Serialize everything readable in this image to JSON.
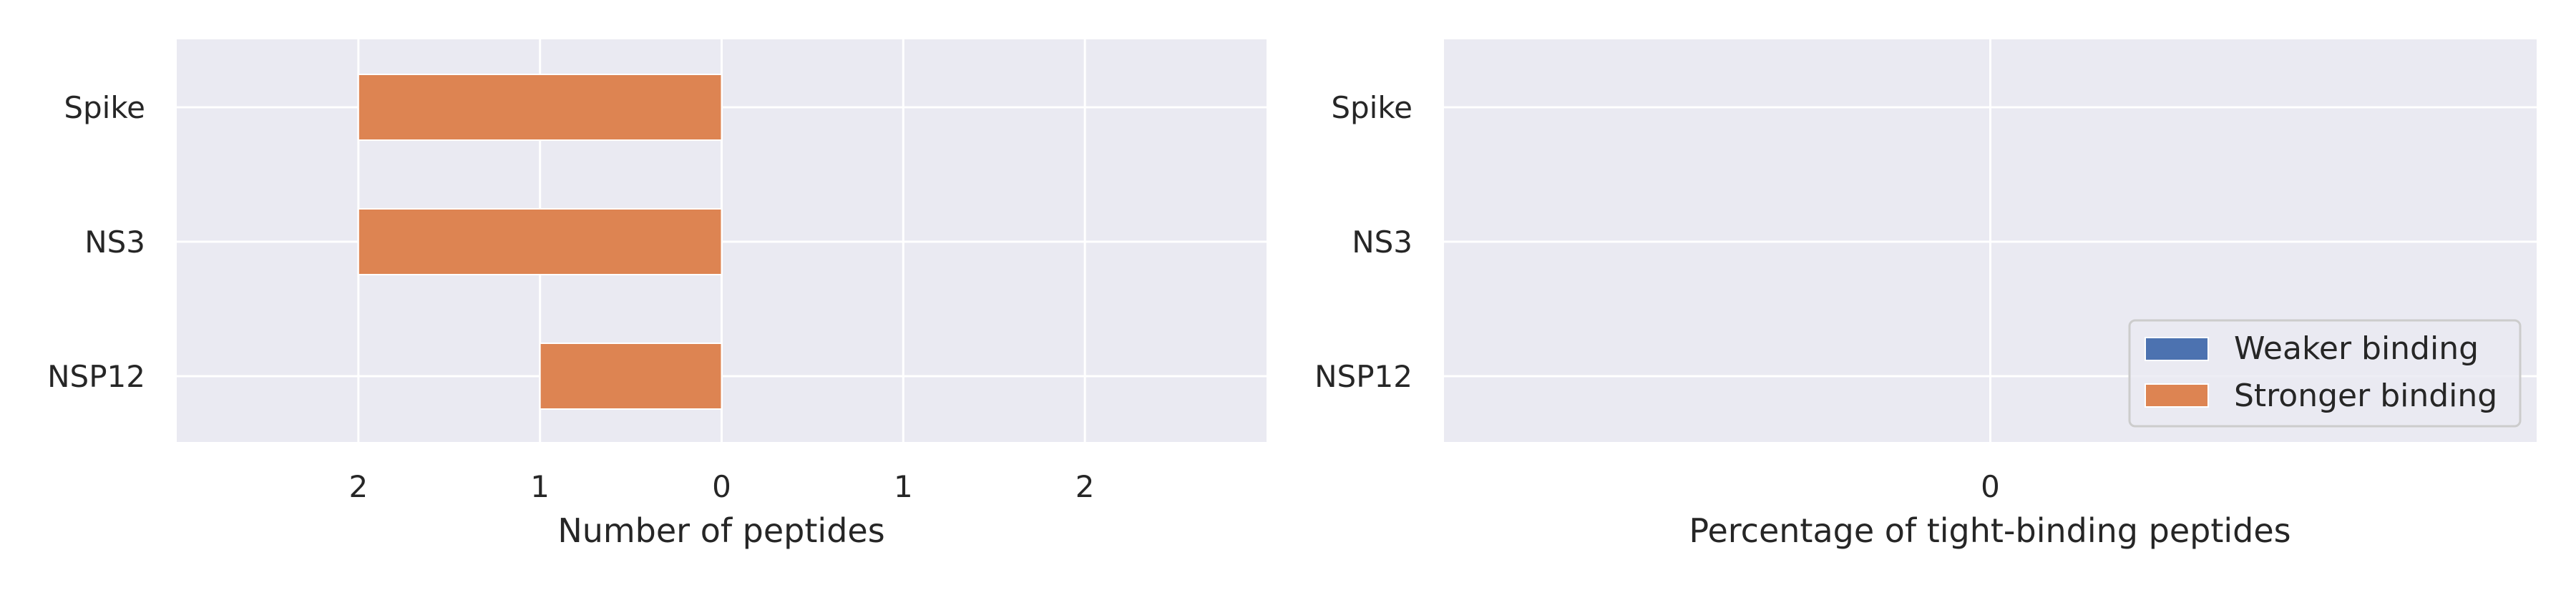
{
  "chart_data": [
    {
      "type": "bar",
      "orientation": "horizontal",
      "layout": "diverging",
      "categories": [
        "Spike",
        "NS3",
        "NSP12"
      ],
      "series": [
        {
          "name": "Weaker binding",
          "values": [
            0,
            0,
            0
          ],
          "color": "#4c72b0"
        },
        {
          "name": "Stronger binding",
          "values": [
            2,
            2,
            1
          ],
          "color": "#dd8452"
        }
      ],
      "xlabel": "Number of peptides",
      "xlim": [
        -3,
        3
      ],
      "xticks": [
        {
          "value": -2,
          "label": "2"
        },
        {
          "value": -1,
          "label": "1"
        },
        {
          "value": 0,
          "label": "0"
        },
        {
          "value": 1,
          "label": "1"
        },
        {
          "value": 2,
          "label": "2"
        }
      ],
      "grid": true
    },
    {
      "type": "bar",
      "orientation": "horizontal",
      "categories": [
        "Spike",
        "NS3",
        "NSP12"
      ],
      "series": [
        {
          "name": "Weaker binding",
          "values": [
            0,
            0,
            0
          ],
          "color": "#4c72b0"
        },
        {
          "name": "Stronger binding",
          "values": [
            0,
            0,
            0
          ],
          "color": "#dd8452"
        }
      ],
      "xlabel": "Percentage of tight-binding peptides",
      "xticks": [
        {
          "value": 0,
          "label": "0"
        }
      ],
      "grid": true,
      "legend": {
        "position": "bottom-right",
        "entries": [
          "Weaker binding",
          "Stronger binding"
        ]
      }
    }
  ]
}
